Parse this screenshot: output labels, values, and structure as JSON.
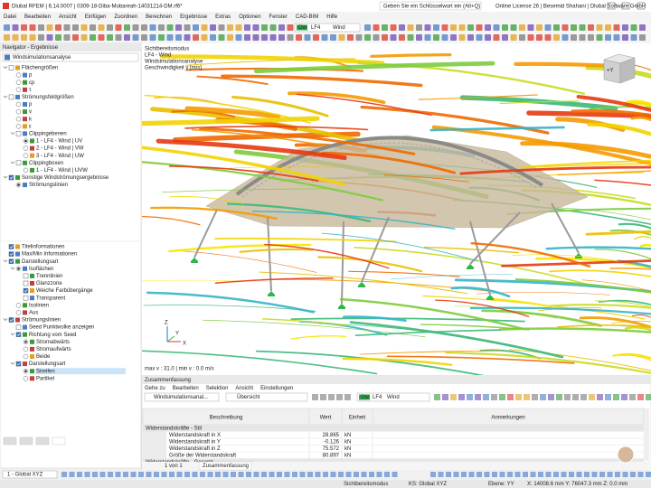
{
  "title_bar": {
    "title": "Dlubal RFEM | 6.14.0007 | 0309-18-Diba-Mobareah-14031214-DM.rf6*",
    "search": "Geben Sie ein Schlüsselwort ein (Alt+Q)",
    "license": "Online License 26 | Besemid Shahani | Dlubal Software GmbH"
  },
  "menu": [
    "Datei",
    "Bearbeiten",
    "Ansicht",
    "Einfügen",
    "Zuordnen",
    "Berechnen",
    "Ergebnisse",
    "Extras",
    "Optionen",
    "Fenster",
    "CAD-BIM",
    "Hilfe"
  ],
  "toolbar": {
    "load_type": "Ow",
    "load_case": "LF4",
    "load_name": "Wind"
  },
  "navigator": {
    "title": "Navigator - Ergebnisse",
    "dropdown": "Windsimulationsanalyse",
    "results_tree": [
      {
        "label": "Flächengrößen",
        "control": "checkbox",
        "checked": false,
        "children": [
          {
            "label": "p",
            "control": "radio",
            "checked": false
          },
          {
            "label": "cp",
            "control": "radio",
            "checked": false
          },
          {
            "label": "τ",
            "control": "radio",
            "checked": false
          }
        ]
      },
      {
        "label": "Strömungsfeldgrößen",
        "control": "checkbox",
        "checked": false,
        "children": [
          {
            "label": "p",
            "control": "radio",
            "checked": false
          },
          {
            "label": "v",
            "control": "radio",
            "checked": false
          },
          {
            "label": "k",
            "control": "radio",
            "checked": false
          },
          {
            "label": "ε",
            "control": "radio",
            "checked": false
          },
          {
            "label": "Clippingebenen",
            "control": "checkbox",
            "checked": false,
            "children": [
              {
                "label": "1 - LF4 - Wind | UV",
                "control": "radio",
                "checked": true
              },
              {
                "label": "2 - LF4 - Wind | VW",
                "control": "radio",
                "checked": false
              },
              {
                "label": "3 - LF4 - Wind | UW",
                "control": "radio",
                "checked": false
              }
            ]
          },
          {
            "label": "Clippingboxen",
            "control": "checkbox",
            "checked": false,
            "children": [
              {
                "label": "1 - LF4 - Wind | UVW",
                "control": "radio",
                "checked": false
              }
            ]
          }
        ]
      },
      {
        "label": "Sonstige Windströmungsergebnisse",
        "control": "checkbox",
        "checked": true,
        "children": [
          {
            "label": "Strömungslinien",
            "control": "radio",
            "checked": true
          }
        ]
      }
    ],
    "display_tree": [
      {
        "label": "Titelinformationen",
        "control": "checkbox",
        "checked": true
      },
      {
        "label": "Max/Min Informationen",
        "control": "checkbox",
        "checked": true
      },
      {
        "label": "Darstellungsart",
        "control": "checkbox",
        "checked": true,
        "children": [
          {
            "label": "Isoflächen",
            "control": "radio",
            "checked": true,
            "children": [
              {
                "label": "Trennlinien",
                "control": "checkbox",
                "checked": false
              },
              {
                "label": "Glanzzone",
                "control": "checkbox",
                "checked": false
              },
              {
                "label": "Weiche Farbübergänge",
                "control": "checkbox",
                "checked": true
              },
              {
                "label": "Transparent",
                "control": "checkbox",
                "checked": false
              }
            ]
          },
          {
            "label": "Isolinien",
            "control": "radio",
            "checked": false
          },
          {
            "label": "Aus",
            "control": "radio",
            "checked": false
          }
        ]
      },
      {
        "label": "Strömungslinien",
        "control": "checkbox",
        "checked": true,
        "children": [
          {
            "label": "Seed Punktwolke anzeigen",
            "control": "checkbox",
            "checked": false
          },
          {
            "label": "Richtung vom Seed",
            "control": "checkbox",
            "checked": true,
            "children": [
              {
                "label": "Stromabwärts",
                "control": "radio",
                "checked": true
              },
              {
                "label": "Stromaufwärts",
                "control": "radio",
                "checked": false
              },
              {
                "label": "Beide",
                "control": "radio",
                "checked": false
              }
            ]
          },
          {
            "label": "Darstellungsart",
            "control": "checkbox",
            "checked": true,
            "children": [
              {
                "label": "Streifen",
                "control": "radio",
                "checked": true
              },
              {
                "label": "Partikel",
                "control": "radio",
                "checked": false
              }
            ]
          }
        ]
      }
    ]
  },
  "viewport": {
    "info": [
      "Sichtbereitsmodus",
      "LF4 - Wind",
      "Windsimulationsanalyse",
      "Geschwindigkeit v [m/s]"
    ],
    "maxmin": "max v : 31.0 | min v : 0.0 m/s",
    "axes": [
      "X",
      "Y",
      "Z"
    ],
    "cube": "+Y"
  },
  "summary": {
    "title": "Zusammenfassung",
    "menu": [
      "Gehe zu",
      "Bearbeiten",
      "Selektion",
      "Ansicht",
      "Einstellungen"
    ],
    "analysis": "Windsimulationsanal...",
    "view": "Übersicht",
    "load_type": "Ow",
    "load_case": "LF4",
    "load_name": "Wind",
    "columns": [
      "Beschreibung",
      "Wert",
      "Einheit",
      "Anmerkungen"
    ],
    "rows": [
      {
        "group": "Widerstandskräfte - Stil"
      },
      {
        "label": "Widerstandskraft in X",
        "value": 28.865,
        "unit": "kN"
      },
      {
        "label": "Widerstandskraft in Y",
        "value": -0.126,
        "unit": "kN"
      },
      {
        "label": "Widerstandskraft in Z",
        "value": 75.572,
        "unit": "kN"
      },
      {
        "label": "Größe der Widerstandskraft",
        "value": 80.897,
        "unit": "kN"
      },
      {
        "group": "Widerstandskräfte - Gesamt"
      }
    ],
    "pager": "1 von 1",
    "tab": "Zusammenfassung"
  },
  "status_bar": {
    "coord_system": "1 - Global XYZ",
    "mode": "Sichtbereitsmodus",
    "ks": "KS: Global XYZ",
    "plane": "Ebene: YY",
    "position": "X: 14008.6 mm  Y: 76047.3 mm  Z: 0.0 mm"
  }
}
